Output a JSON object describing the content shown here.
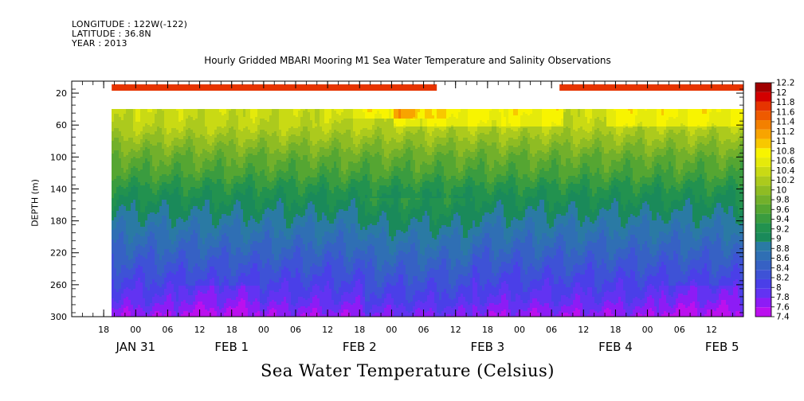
{
  "meta": {
    "longitude": "LONGITUDE : 122W(-122)",
    "latitude": "LATITUDE : 36.8N",
    "year": "YEAR : 2013"
  },
  "chart_data": {
    "type": "heatmap",
    "title": "Hourly Gridded MBARI Mooring M1 Sea Water Temperature and Salinity Observations",
    "xlabel": "Sea Water Temperature (Celsius)",
    "ylabel": "DEPTH (m)",
    "x_hour_ticks": [
      "18",
      "00",
      "06",
      "12",
      "18",
      "00",
      "06",
      "12",
      "18",
      "00",
      "06",
      "12",
      "18",
      "00",
      "06",
      "12",
      "18",
      "00",
      "06",
      "12"
    ],
    "x_day_labels": [
      "JAN 31",
      "FEB  1",
      "FEB  2",
      "FEB  3",
      "FEB  4",
      "FEB  5"
    ],
    "y_ticks": [
      20,
      60,
      100,
      140,
      180,
      220,
      260,
      300
    ],
    "ylim": [
      300,
      5
    ],
    "x_range_hours": [
      0,
      126
    ],
    "data_start_hour": 7.5,
    "colorbar_levels": [
      7.4,
      7.6,
      7.8,
      8,
      8.2,
      8.4,
      8.6,
      8.8,
      9,
      9.2,
      9.4,
      9.6,
      9.8,
      10,
      10.2,
      10.4,
      10.6,
      10.8,
      11,
      11.2,
      11.4,
      11.6,
      11.8,
      12,
      12.2
    ],
    "colorbar_colors": [
      "#bb10ee",
      "#8d1cf5",
      "#6233f2",
      "#4a3fe8",
      "#3e52d6",
      "#3661c4",
      "#2f6fb4",
      "#2a7aa4",
      "#1a8a5a",
      "#22924f",
      "#3a9c3f",
      "#55a632",
      "#72b02b",
      "#8fbc23",
      "#acca1d",
      "#c9da14",
      "#e5ea0b",
      "#f8f400",
      "#f8c800",
      "#f8a400",
      "#f38000",
      "#ee5a00",
      "#e63400",
      "#d30000",
      "#a00000"
    ],
    "surface_strip": {
      "depth_m": 13,
      "segments": [
        {
          "start_hour": 7.5,
          "end_hour": 68.5,
          "color": "#e63400"
        },
        {
          "start_hour": 68.5,
          "end_hour": 91.5,
          "color": "#ffffff"
        },
        {
          "start_hour": 91.5,
          "end_hour": 126,
          "color": "#e63400"
        }
      ]
    },
    "depth_profile": [
      {
        "depth_m": 40,
        "temp": 10.5
      },
      {
        "depth_m": 60,
        "temp": 10.4
      },
      {
        "depth_m": 80,
        "temp": 10.1
      },
      {
        "depth_m": 100,
        "temp": 9.8
      },
      {
        "depth_m": 120,
        "temp": 9.6
      },
      {
        "depth_m": 140,
        "temp": 9.3
      },
      {
        "depth_m": 160,
        "temp": 9.1
      },
      {
        "depth_m": 180,
        "temp": 8.9
      },
      {
        "depth_m": 200,
        "temp": 8.7
      },
      {
        "depth_m": 220,
        "temp": 8.5
      },
      {
        "depth_m": 240,
        "temp": 8.3
      },
      {
        "depth_m": 260,
        "temp": 8.1
      },
      {
        "depth_m": 280,
        "temp": 7.9
      },
      {
        "depth_m": 300,
        "temp": 7.6
      }
    ]
  }
}
